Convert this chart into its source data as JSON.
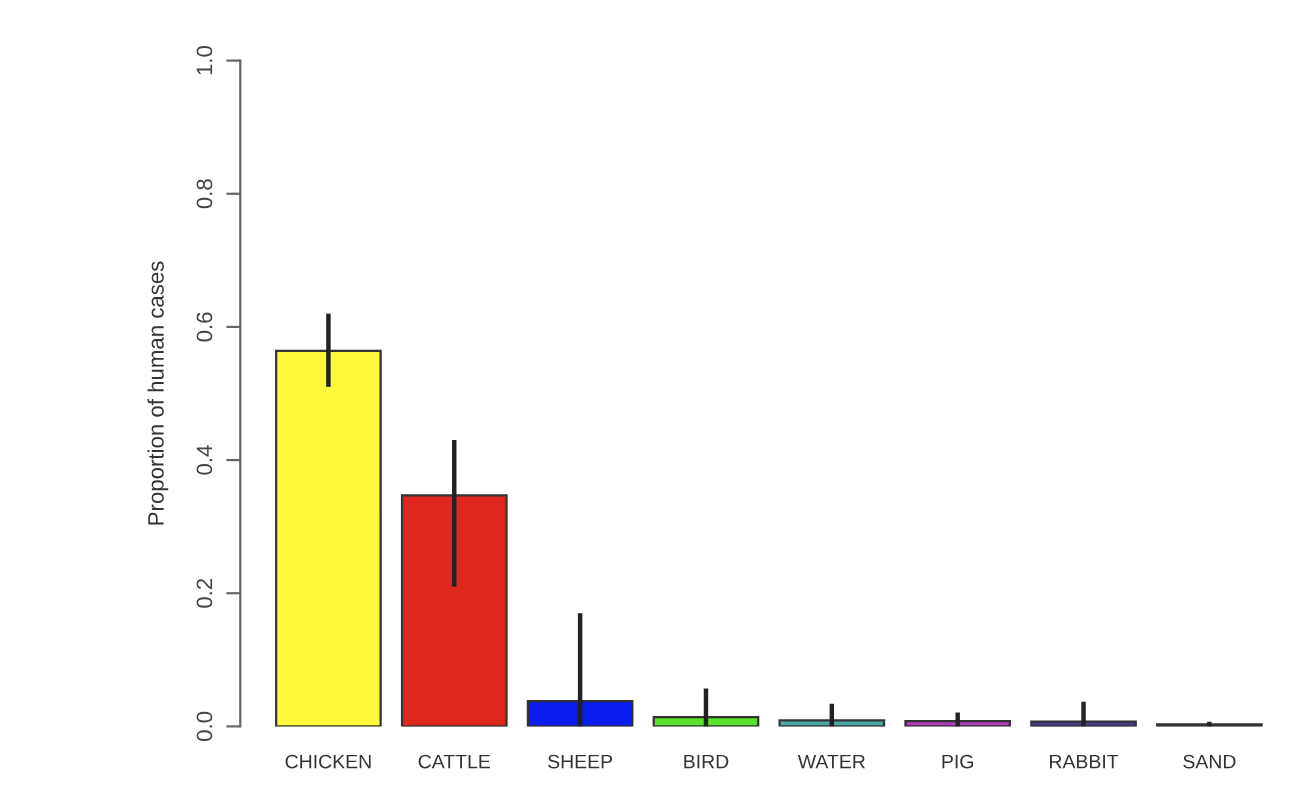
{
  "chart_data": {
    "type": "bar",
    "ylabel": "Proportion of human cases",
    "categories": [
      "CHICKEN",
      "CATTLE",
      "SHEEP",
      "BIRD",
      "WATER",
      "PIG",
      "RABBIT",
      "SAND"
    ],
    "values": [
      0.564,
      0.347,
      0.038,
      0.014,
      0.009,
      0.008,
      0.007,
      0.003
    ],
    "colors": [
      "#fcf93b",
      "#e0271d",
      "#0a1cf0",
      "#5be22c",
      "#4aa9a4",
      "#b03cb8",
      "#4a3a8c",
      "#888888"
    ],
    "errors": [
      [
        0.51,
        0.62
      ],
      [
        0.21,
        0.43
      ],
      [
        0.0,
        0.17
      ],
      [
        0.0,
        0.057
      ],
      [
        0.0,
        0.034
      ],
      [
        0.0,
        0.021
      ],
      [
        0.0,
        0.037
      ],
      [
        0.0,
        0.007
      ]
    ],
    "ylim": [
      0,
      1
    ],
    "yticks": [
      {
        "value": 0,
        "label": "0.0"
      },
      {
        "value": 0.2,
        "label": "0.2"
      },
      {
        "value": 0.4,
        "label": "0.4"
      },
      {
        "value": 0.6,
        "label": "0.6"
      },
      {
        "value": 0.8,
        "label": "0.8"
      },
      {
        "value": 1,
        "label": "1.0"
      }
    ],
    "grid": false,
    "legend": false
  }
}
